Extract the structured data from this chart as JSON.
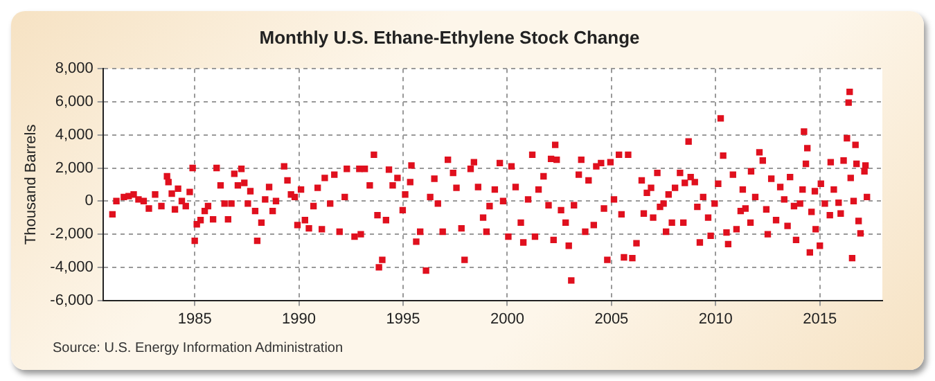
{
  "chart_data": {
    "type": "scatter",
    "title": "Monthly U.S. Ethane-Ethylene Stock Change",
    "ylabel": "Thousand Barrels",
    "annotations": [
      "Source: U.S. Energy Information Administration"
    ],
    "xlim": [
      1980.6,
      2018
    ],
    "xticks": [
      1985,
      1990,
      1995,
      2000,
      2005,
      2010,
      2015
    ],
    "ylim": [
      -6000,
      8000
    ],
    "yticks": [
      {
        "value": -6000,
        "label": "-6,000"
      },
      {
        "value": -4000,
        "label": "-4,000"
      },
      {
        "value": -2000,
        "label": "-2,000"
      },
      0,
      {
        "value": 2000,
        "label": "2,000"
      },
      {
        "value": 4000,
        "label": "4,000"
      },
      {
        "value": 6000,
        "label": "6,000"
      },
      {
        "value": 8000,
        "label": "8,000"
      }
    ],
    "grid": true,
    "legend": false,
    "marker": "square",
    "series": [
      {
        "color": "#e0101e",
        "x": [
          1981.05,
          1981.24,
          1981.6,
          1981.83,
          1982.07,
          1982.3,
          1982.55,
          1982.8,
          1983.1,
          1983.4,
          1983.67,
          1983.74,
          1983.9,
          1984.05,
          1984.2,
          1984.38,
          1984.57,
          1984.76,
          1984.9,
          1985.0,
          1985.1,
          1985.28,
          1985.48,
          1985.64,
          1985.88,
          1986.05,
          1986.24,
          1986.43,
          1986.6,
          1986.76,
          1986.9,
          1987.07,
          1987.24,
          1987.38,
          1987.55,
          1987.67,
          1987.9,
          1988.0,
          1988.2,
          1988.38,
          1988.57,
          1988.74,
          1988.9,
          1989.29,
          1989.45,
          1989.62,
          1989.8,
          1989.93,
          1990.1,
          1990.29,
          1990.48,
          1990.7,
          1990.9,
          1991.1,
          1991.24,
          1991.5,
          1991.7,
          1991.95,
          1992.2,
          1992.3,
          1992.67,
          1992.9,
          1992.97,
          1993.16,
          1993.4,
          1993.6,
          1993.77,
          1993.84,
          1994.0,
          1994.18,
          1994.32,
          1994.5,
          1994.73,
          1994.98,
          1995.1,
          1995.34,
          1995.4,
          1995.63,
          1995.82,
          1996.1,
          1996.3,
          1996.5,
          1996.67,
          1996.9,
          1997.15,
          1997.4,
          1997.56,
          1997.8,
          1997.95,
          1998.24,
          1998.4,
          1998.6,
          1998.84,
          1999.0,
          1999.15,
          1999.4,
          1999.64,
          1999.8,
          2000.05,
          2000.2,
          2000.4,
          2000.65,
          2000.77,
          2001.0,
          2001.2,
          2001.33,
          2001.5,
          2001.74,
          2001.98,
          2002.1,
          2002.22,
          2002.3,
          2002.37,
          2002.58,
          2002.8,
          2002.95,
          2003.07,
          2003.2,
          2003.43,
          2003.55,
          2003.74,
          2003.9,
          2004.15,
          2004.27,
          2004.5,
          2004.64,
          2004.8,
          2004.95,
          2005.12,
          2005.36,
          2005.48,
          2005.6,
          2005.8,
          2006.0,
          2006.2,
          2006.45,
          2006.55,
          2006.7,
          2006.9,
          2007.0,
          2007.2,
          2007.33,
          2007.5,
          2007.62,
          2007.74,
          2007.9,
          2008.05,
          2008.29,
          2008.45,
          2008.52,
          2008.7,
          2008.8,
          2009.0,
          2009.12,
          2009.24,
          2009.4,
          2009.64,
          2009.76,
          2009.95,
          2010.12,
          2010.24,
          2010.36,
          2010.52,
          2010.6,
          2010.83,
          2011.0,
          2011.2,
          2011.3,
          2011.43,
          2011.67,
          2011.7,
          2011.9,
          2012.1,
          2012.26,
          2012.43,
          2012.5,
          2012.67,
          2012.9,
          2013.1,
          2013.29,
          2013.45,
          2013.57,
          2013.76,
          2013.86,
          2014.05,
          2014.17,
          2014.24,
          2014.33,
          2014.4,
          2014.52,
          2014.6,
          2014.76,
          2014.8,
          2015.0,
          2015.05,
          2015.24,
          2015.48,
          2015.52,
          2015.67,
          2015.9,
          2016.0,
          2016.14,
          2016.3,
          2016.38,
          2016.43,
          2016.48,
          2016.55,
          2016.62,
          2016.71,
          2016.76,
          2016.86,
          2016.95,
          2017.14,
          2017.19,
          2017.26
        ],
        "values": [
          -800,
          0,
          250,
          300,
          400,
          100,
          0,
          -450,
          400,
          -300,
          1500,
          1150,
          450,
          -500,
          750,
          0,
          -300,
          550,
          2000,
          -2400,
          -1400,
          -1150,
          -600,
          -300,
          -1100,
          2000,
          950,
          -150,
          -1100,
          -150,
          1650,
          950,
          1950,
          1100,
          -150,
          600,
          -600,
          -2400,
          -1300,
          100,
          850,
          -600,
          0,
          2100,
          1250,
          400,
          250,
          -1450,
          700,
          -1150,
          -1650,
          -300,
          800,
          -1700,
          1400,
          -150,
          1600,
          -1850,
          250,
          1950,
          -2150,
          1950,
          -2000,
          1950,
          950,
          2800,
          -850,
          -4000,
          -3550,
          -1150,
          1900,
          950,
          1400,
          -550,
          400,
          1150,
          2150,
          -2450,
          -1850,
          -4200,
          250,
          1350,
          -150,
          -1850,
          2500,
          1700,
          800,
          -1650,
          -3550,
          1950,
          2350,
          850,
          -1000,
          -1850,
          -300,
          700,
          2300,
          0,
          -2150,
          2100,
          850,
          -1300,
          -2500,
          100,
          2800,
          -2150,
          700,
          1500,
          -250,
          2550,
          -2350,
          3400,
          2500,
          -550,
          -1300,
          -2700,
          -4800,
          -250,
          1600,
          2500,
          -1850,
          1250,
          -1450,
          2100,
          2300,
          -450,
          -3550,
          2350,
          100,
          2800,
          -800,
          -3400,
          2800,
          -3450,
          -2550,
          1250,
          -750,
          500,
          800,
          -1000,
          1700,
          -350,
          -150,
          -1850,
          400,
          -1300,
          800,
          1700,
          -1300,
          1100,
          3600,
          1450,
          1150,
          -350,
          -2500,
          250,
          -1000,
          -2100,
          -150,
          1050,
          5000,
          2750,
          -1900,
          -2600,
          1600,
          -1700,
          -600,
          700,
          -450,
          -1300,
          1800,
          250,
          2950,
          2450,
          -500,
          -2000,
          1350,
          -1150,
          850,
          100,
          -1500,
          1450,
          -300,
          -2350,
          -150,
          700,
          4200,
          2250,
          3200,
          -3100,
          -650,
          600,
          -1700,
          -2700,
          1050,
          -150,
          -850,
          2350,
          700,
          -100,
          -750,
          2450,
          3800,
          5950,
          6600,
          1400,
          -3450,
          0,
          3400,
          2250,
          -1200,
          -1950,
          1800,
          2150,
          250
        ]
      }
    ]
  }
}
